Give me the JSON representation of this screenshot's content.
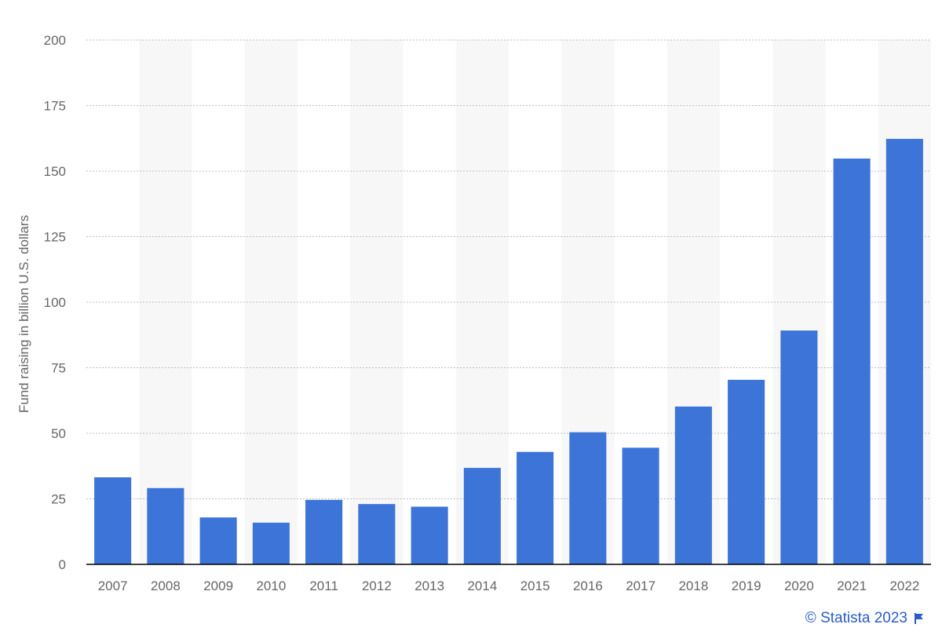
{
  "chart_data": {
    "type": "bar",
    "categories": [
      "2007",
      "2008",
      "2009",
      "2010",
      "2011",
      "2012",
      "2013",
      "2014",
      "2015",
      "2016",
      "2017",
      "2018",
      "2019",
      "2020",
      "2021",
      "2022"
    ],
    "values": [
      33.2,
      29.1,
      17.9,
      15.9,
      24.6,
      23.0,
      22.0,
      36.8,
      42.9,
      50.4,
      44.5,
      60.2,
      70.4,
      89.2,
      154.8,
      162.3
    ],
    "xlabel": "",
    "ylabel": "Fund raising in billion U.S. dollars",
    "ylim": [
      0,
      200
    ],
    "yticks": [
      0,
      25,
      50,
      75,
      100,
      125,
      150,
      175,
      200
    ],
    "grid": true,
    "bar_color": "#3d74d8",
    "stripe_color": "#f7f7f7",
    "axis_color": "#000000",
    "grid_color": "#bdbdbd"
  },
  "credit": {
    "text": "© Statista 2023",
    "icon": "flag-icon",
    "color": "#2a5cc4"
  }
}
